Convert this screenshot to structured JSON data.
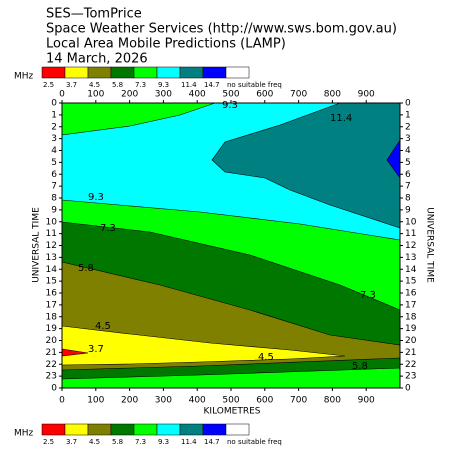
{
  "header_lines": [
    "SES—TomPrice",
    "Space Weather Services (http://www.sws.bom.gov.au)",
    "Local Area Mobile Predictions (LAMP)",
    "14 March, 2026"
  ],
  "chart_data": {
    "type": "contour",
    "legend_unit": "MHz",
    "levels": [
      {
        "value": 2.5,
        "color": "#ff0000"
      },
      {
        "value": 3.7,
        "color": "#ffff00"
      },
      {
        "value": 4.5,
        "color": "#808000"
      },
      {
        "value": 5.8,
        "color": "#007800"
      },
      {
        "value": 7.3,
        "color": "#00ff00"
      },
      {
        "value": 9.3,
        "color": "#00ffff"
      },
      {
        "value": 11.4,
        "color": "#008080"
      },
      {
        "value": 14.7,
        "color": "#0000ff"
      }
    ],
    "no_freq": {
      "label": "no suitable freq",
      "color": "#ffffff"
    },
    "x_label": "KILOMETRES",
    "y_label": "UNIVERSAL TIME",
    "xlim": [
      0,
      1000
    ],
    "xticks": [
      0,
      100,
      200,
      300,
      400,
      500,
      600,
      700,
      800,
      900
    ],
    "ylim": [
      0,
      24
    ],
    "yticks": [
      0,
      1,
      2,
      3,
      4,
      5,
      6,
      7,
      8,
      9,
      10,
      11,
      12,
      13,
      14,
      15,
      16,
      17,
      18,
      19,
      20,
      21,
      22,
      23,
      {
        "value": 24,
        "label": "0"
      }
    ],
    "contour_labels": [
      "9.3",
      "11.4",
      "9.3",
      "7.3",
      "5.8",
      "7.3",
      "4.5",
      "3.7",
      "4.5",
      "5.8"
    ]
  }
}
